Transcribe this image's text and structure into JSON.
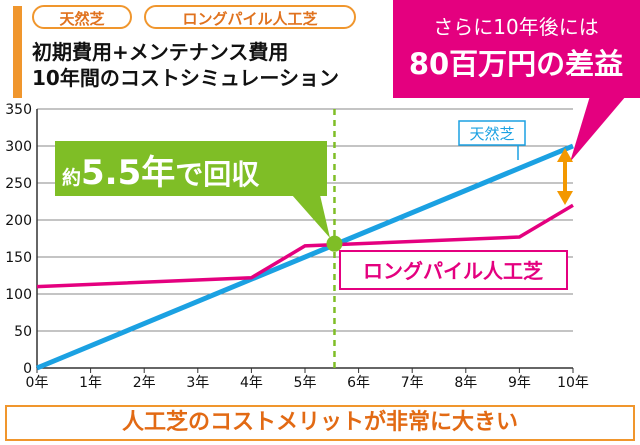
{
  "tags": [
    "天然芝",
    "ロングパイル人工芝"
  ],
  "title_line1": "初期費用+メンテナンス費用",
  "title_line2": "10年間のコストシミュレーション",
  "callout_top_line1": "さらに10年後には",
  "callout_top_line2": "80百万円の差益",
  "callout_breakeven_prefix": "約",
  "callout_breakeven_value": "5.5年",
  "callout_breakeven_suffix": "で回収",
  "footer": "人工芝のコストメリットが非常に大きい",
  "colors": {
    "natural": "#1ba1e2",
    "artificial": "#e4007f",
    "breakeven": "#7fbe26",
    "accent": "#f0962d"
  },
  "chart_data": {
    "type": "line",
    "x": [
      0,
      1,
      2,
      3,
      4,
      5,
      6,
      7,
      8,
      9,
      10
    ],
    "x_tick_labels": [
      "0年",
      "1年",
      "2年",
      "3年",
      "4年",
      "5年",
      "6年",
      "7年",
      "8年",
      "9年",
      "10年"
    ],
    "y_ticks": [
      0,
      50,
      100,
      150,
      200,
      250,
      300,
      350
    ],
    "ylim": [
      0,
      350
    ],
    "xlim": [
      0,
      10
    ],
    "grid": true,
    "series": [
      {
        "name": "天然芝",
        "x": [
          0,
          10
        ],
        "values": [
          0,
          300
        ]
      },
      {
        "name": "ロングパイル人工芝",
        "x": [
          0,
          4,
          5,
          9,
          10
        ],
        "values": [
          110,
          122,
          165,
          177,
          220
        ]
      }
    ],
    "breakeven_x": 5.55,
    "breakeven_y": 168
  }
}
